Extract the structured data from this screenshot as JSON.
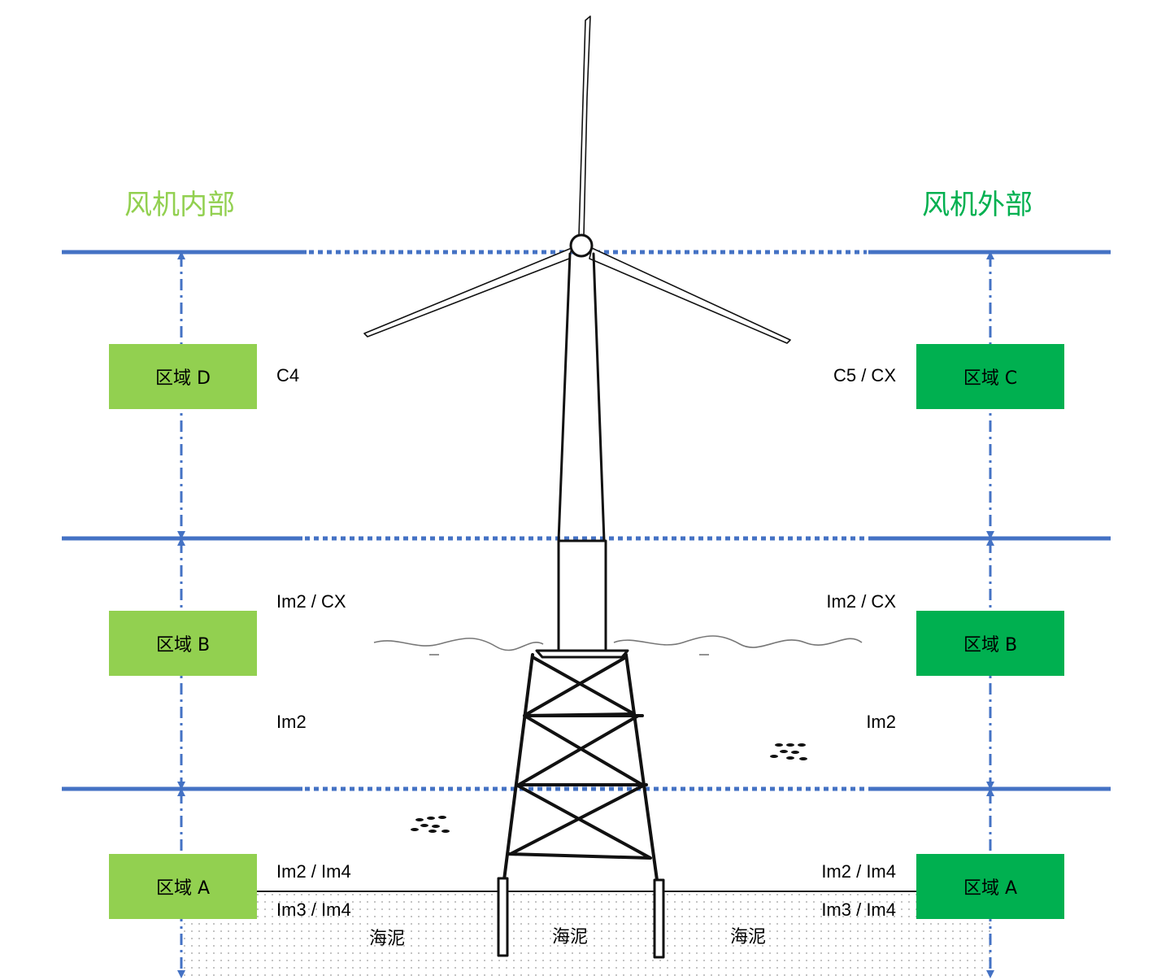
{
  "titles": {
    "inside": "风机内部",
    "outside": "风机外部"
  },
  "colors": {
    "line": "#4472C4",
    "inside_zone": "#92D050",
    "outside_zone": "#00B050"
  },
  "left_zones": [
    {
      "label": "区域 D",
      "category": "C4"
    },
    {
      "label": "区域 B",
      "category_upper": "Im2 / CX",
      "category_lower": "Im2"
    },
    {
      "label": "区域 A",
      "category_upper": "Im2 / Im4",
      "category_lower": "Im3 / Im4"
    }
  ],
  "right_zones": [
    {
      "label": "区域 C",
      "category": "C5 / CX"
    },
    {
      "label": "区域 B",
      "category_upper": "Im2 / CX",
      "category_lower": "Im2"
    },
    {
      "label": "区域 A",
      "category_upper": "Im2 / Im4",
      "category_lower": "Im3 / Im4"
    }
  ],
  "seabed_labels": [
    "海泥",
    "海泥",
    "海泥"
  ]
}
